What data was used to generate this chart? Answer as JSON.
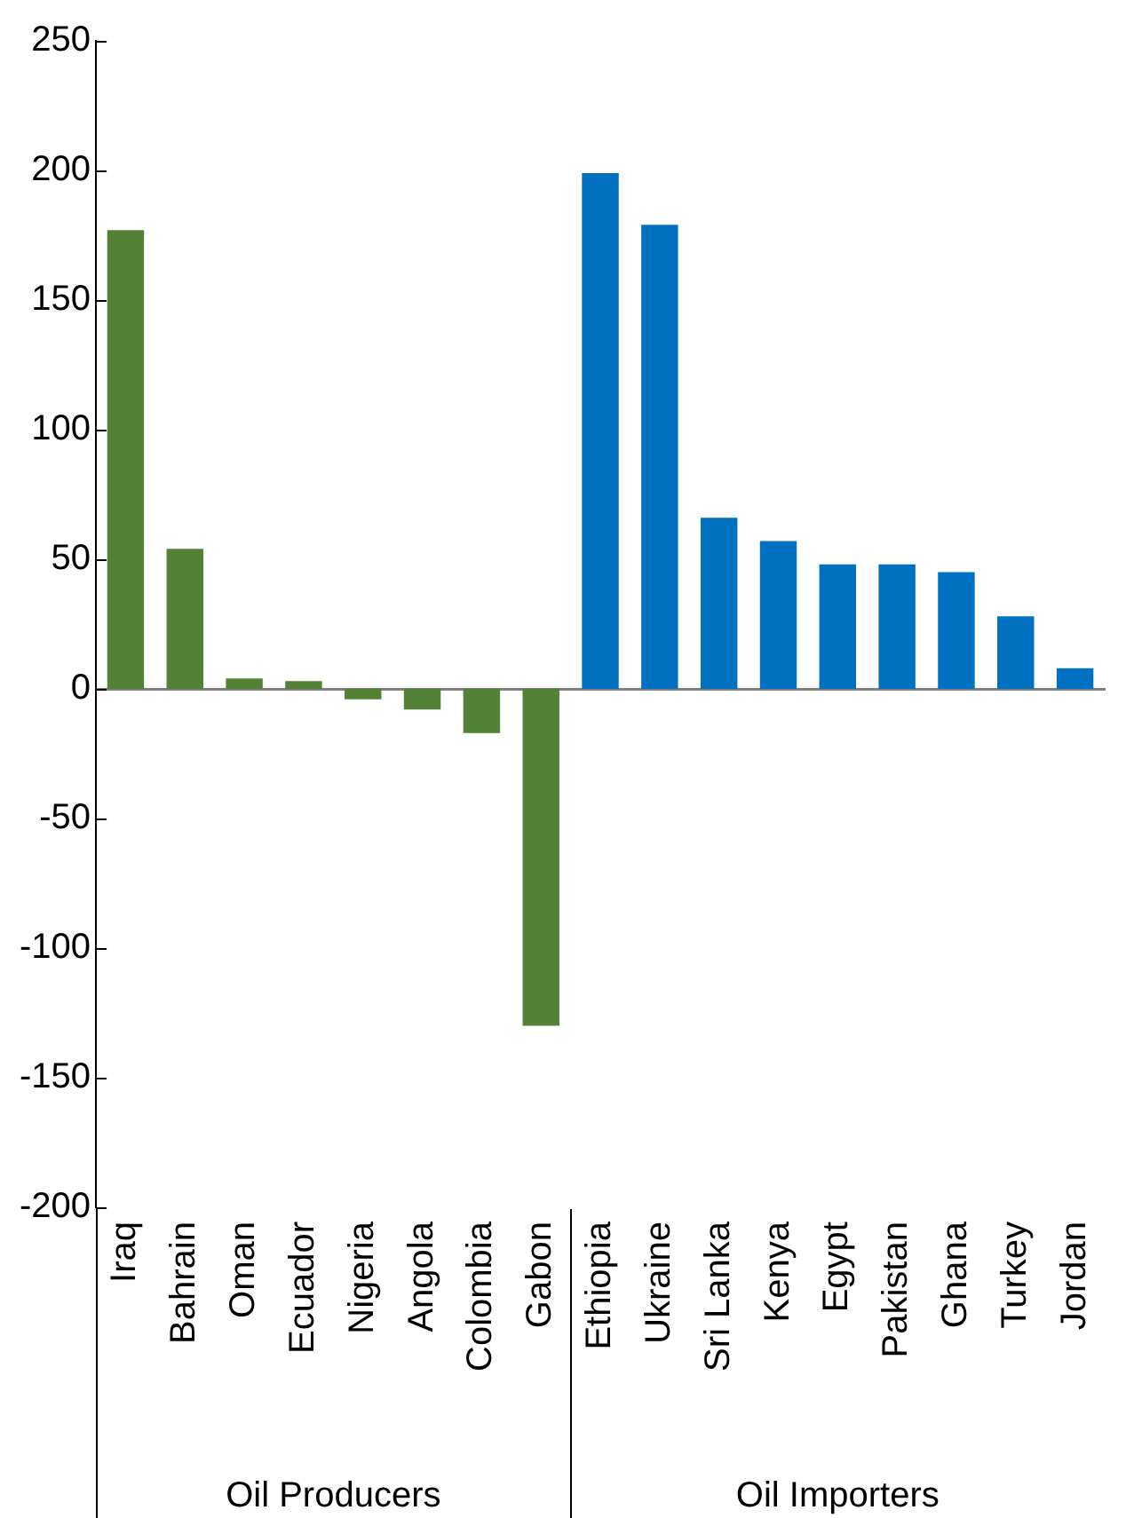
{
  "chart_data": {
    "type": "bar",
    "categories": [
      "Iraq",
      "Bahrain",
      "Oman",
      "Ecuador",
      "Nigeria",
      "Angola",
      "Colombia",
      "Gabon",
      "Ethiopia",
      "Ukraine",
      "Sri Lanka",
      "Kenya",
      "Egypt",
      "Pakistan",
      "Ghana",
      "Turkey",
      "Jordan"
    ],
    "values": [
      177,
      54,
      4,
      3,
      -4,
      -8,
      -17,
      -130,
      199,
      179,
      66,
      57,
      48,
      48,
      45,
      28,
      8
    ],
    "colors": [
      "#538135",
      "#538135",
      "#538135",
      "#538135",
      "#538135",
      "#538135",
      "#538135",
      "#538135",
      "#0070c0",
      "#0070c0",
      "#0070c0",
      "#0070c0",
      "#0070c0",
      "#0070c0",
      "#0070c0",
      "#0070c0",
      "#0070c0"
    ],
    "ylim": [
      -200,
      250
    ],
    "yticks": [
      -200,
      -150,
      -100,
      -50,
      0,
      50,
      100,
      150,
      200,
      250
    ],
    "annotations": [
      "Oil Producers",
      "Oil Importers"
    ],
    "legend": false
  }
}
